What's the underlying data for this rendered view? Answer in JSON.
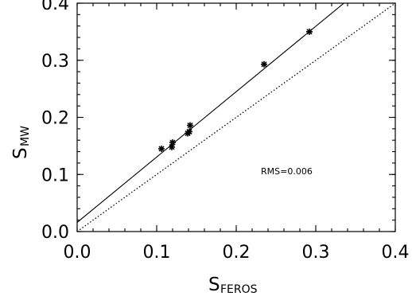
{
  "chart_data": {
    "type": "scatter",
    "xlabel": {
      "main": "S",
      "sub": "FEROS"
    },
    "ylabel": {
      "main": "S",
      "sub": "MW"
    },
    "xlim": [
      0.0,
      0.4
    ],
    "ylim": [
      0.0,
      0.4
    ],
    "xticks": [
      "0.0",
      "0.1",
      "0.2",
      "0.3",
      "0.4"
    ],
    "yticks": [
      "0.0",
      "0.1",
      "0.2",
      "0.3",
      "0.4"
    ],
    "grid": false,
    "marker": "asterisk",
    "points": [
      {
        "x": 0.106,
        "y": 0.145
      },
      {
        "x": 0.119,
        "y": 0.148
      },
      {
        "x": 0.12,
        "y": 0.156
      },
      {
        "x": 0.139,
        "y": 0.172
      },
      {
        "x": 0.141,
        "y": 0.175
      },
      {
        "x": 0.142,
        "y": 0.186
      },
      {
        "x": 0.235,
        "y": 0.293
      },
      {
        "x": 0.292,
        "y": 0.35
      }
    ],
    "fit_line": {
      "style": "solid",
      "slope": 1.145,
      "intercept": 0.016
    },
    "identity_line": {
      "style": "dotted",
      "slope": 1.0,
      "intercept": 0.0
    },
    "annotation": "RMS=0.006"
  }
}
